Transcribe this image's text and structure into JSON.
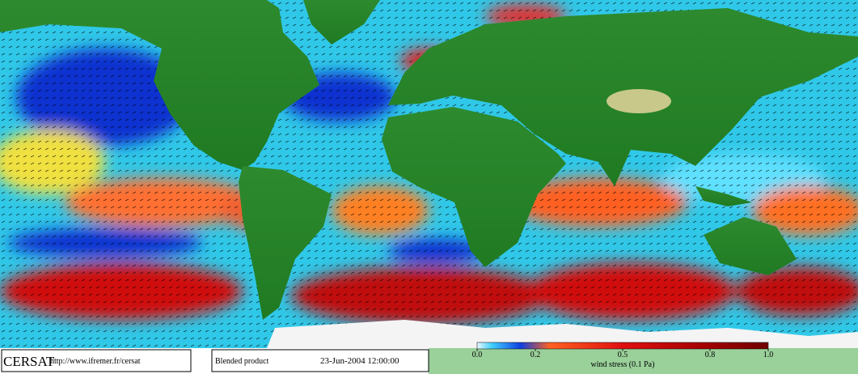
{
  "footer": {
    "logo": "CERSAT",
    "url": "http://www.ifremer.fr/cersat",
    "product": "Blended product",
    "timestamp": "23-Jun-2004 12:00:00"
  },
  "colorbar": {
    "label": "wind stress (0.1 Pa)",
    "lim": [
      0,
      1
    ],
    "ticks": [
      {
        "value": 0,
        "label": "0.0"
      },
      0.2,
      0.5,
      0.8,
      {
        "value": 1,
        "label": "1.0"
      }
    ]
  }
}
